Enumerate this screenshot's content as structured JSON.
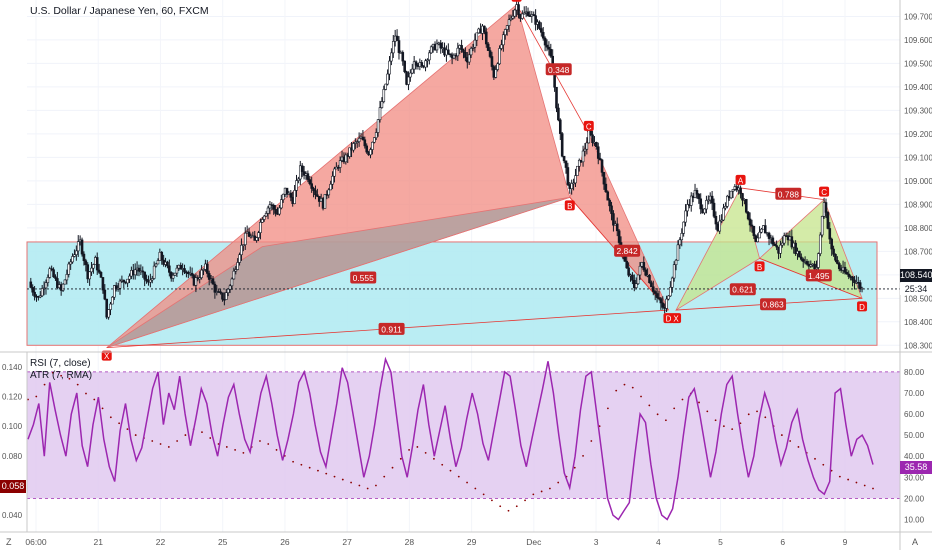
{
  "header": {
    "title": "U.S. Dollar / Japanese Yen, 60, FXCM"
  },
  "indicators": {
    "rsi_label": "RSI (7, close)",
    "atr_label": "ATR (7, RMA)"
  },
  "badges": {
    "last_price": "108.540",
    "countdown": "25:34",
    "rsi_value": "35.58",
    "atr_value": "0.058"
  },
  "corners": {
    "left": "Z",
    "right": "A"
  },
  "colors": {
    "up_candle": "#131722",
    "bull_pattern_fill": "#c6e48b",
    "bear_pattern_fill": "#f28b82",
    "grey_pattern_fill": "#a8a0a0",
    "zone_fill": "#b2ebf2",
    "label_red": "#e8140f",
    "ratio_label": "#c62828",
    "rsi_line": "#9c27b0",
    "rsi_band": "#e1c9f0",
    "atr_dots": "#8b0000"
  },
  "chart_data": [
    {
      "type": "candlestick",
      "title": "U.S. Dollar / Japanese Yen, 60, FXCM",
      "y_axis": {
        "side": "right",
        "ticks": [
          108.3,
          108.4,
          108.5,
          108.6,
          108.7,
          108.8,
          108.9,
          109.0,
          109.1,
          109.2,
          109.3,
          109.4,
          109.5,
          109.6,
          109.7
        ],
        "labels": [
          "108.300",
          "108.400",
          "108.500",
          "108.600",
          "108.700",
          "108.800",
          "108.900",
          "109.000",
          "109.100",
          "109.200",
          "109.300",
          "109.400",
          "109.500",
          "109.600",
          "109.700"
        ],
        "ylim": [
          108.28,
          109.77
        ]
      },
      "x_axis": {
        "labels": [
          "06:00",
          "21",
          "22",
          "25",
          "26",
          "27",
          "28",
          "29",
          "Dec",
          "3",
          "4",
          "5",
          "6",
          "9"
        ]
      },
      "last_price": 108.54,
      "support_zone": [
        108.3,
        108.74
      ],
      "price_path": [
        [
          0,
          108.57
        ],
        [
          3,
          108.5
        ],
        [
          6,
          108.62
        ],
        [
          9,
          108.53
        ],
        [
          12,
          108.68
        ],
        [
          14,
          108.74
        ],
        [
          16,
          108.6
        ],
        [
          18,
          108.66
        ],
        [
          20,
          108.55
        ],
        [
          21,
          108.42
        ],
        [
          23,
          108.55
        ],
        [
          26,
          108.58
        ],
        [
          29,
          108.63
        ],
        [
          32,
          108.56
        ],
        [
          35,
          108.68
        ],
        [
          38,
          108.6
        ],
        [
          41,
          108.64
        ],
        [
          44,
          108.57
        ],
        [
          47,
          108.63
        ],
        [
          50,
          108.52
        ],
        [
          52,
          108.5
        ],
        [
          54,
          108.58
        ],
        [
          56,
          108.7
        ],
        [
          58,
          108.78
        ],
        [
          60,
          108.74
        ],
        [
          62,
          108.85
        ],
        [
          64,
          108.9
        ],
        [
          66,
          108.86
        ],
        [
          68,
          108.96
        ],
        [
          70,
          108.92
        ],
        [
          72,
          109.05
        ],
        [
          74,
          109.02
        ],
        [
          76,
          108.95
        ],
        [
          78,
          108.9
        ],
        [
          80,
          109.0
        ],
        [
          82,
          109.07
        ],
        [
          84,
          109.1
        ],
        [
          86,
          109.15
        ],
        [
          88,
          109.18
        ],
        [
          90,
          109.12
        ],
        [
          92,
          109.22
        ],
        [
          93,
          109.3
        ],
        [
          95,
          109.45
        ],
        [
          96,
          109.55
        ],
        [
          97,
          109.62
        ],
        [
          99,
          109.5
        ],
        [
          100,
          109.4
        ],
        [
          102,
          109.52
        ],
        [
          104,
          109.48
        ],
        [
          106,
          109.55
        ],
        [
          108,
          109.58
        ],
        [
          110,
          109.55
        ],
        [
          112,
          109.52
        ],
        [
          114,
          109.57
        ],
        [
          116,
          109.52
        ],
        [
          118,
          109.6
        ],
        [
          120,
          109.66
        ],
        [
          122,
          109.52
        ],
        [
          123,
          109.45
        ],
        [
          125,
          109.58
        ],
        [
          127,
          109.68
        ],
        [
          129,
          109.75
        ],
        [
          130,
          109.7
        ],
        [
          132,
          109.72
        ],
        [
          134,
          109.68
        ],
        [
          136,
          109.62
        ],
        [
          138,
          109.52
        ],
        [
          139,
          109.4
        ],
        [
          140,
          109.25
        ],
        [
          141,
          109.12
        ],
        [
          142,
          109.05
        ],
        [
          143,
          108.95
        ],
        [
          145,
          109.05
        ],
        [
          147,
          109.14
        ],
        [
          148,
          109.2
        ],
        [
          150,
          109.15
        ],
        [
          152,
          109.0
        ],
        [
          154,
          108.85
        ],
        [
          156,
          108.75
        ],
        [
          158,
          108.62
        ],
        [
          160,
          108.55
        ],
        [
          162,
          108.65
        ],
        [
          164,
          108.58
        ],
        [
          166,
          108.5
        ],
        [
          168,
          108.45
        ],
        [
          170,
          108.6
        ],
        [
          172,
          108.75
        ],
        [
          174,
          108.9
        ],
        [
          176,
          108.95
        ],
        [
          178,
          108.88
        ],
        [
          180,
          108.92
        ],
        [
          182,
          108.8
        ],
        [
          184,
          108.9
        ],
        [
          186,
          108.98
        ],
        [
          188,
          108.96
        ],
        [
          190,
          108.85
        ],
        [
          192,
          108.73
        ],
        [
          194,
          108.8
        ],
        [
          196,
          108.75
        ],
        [
          198,
          108.7
        ],
        [
          200,
          108.78
        ],
        [
          202,
          108.72
        ],
        [
          204,
          108.67
        ],
        [
          206,
          108.65
        ],
        [
          208,
          108.62
        ],
        [
          210,
          108.92
        ],
        [
          212,
          108.7
        ],
        [
          214,
          108.63
        ],
        [
          216,
          108.6
        ],
        [
          218,
          108.58
        ],
        [
          220,
          108.54
        ]
      ],
      "patterns": [
        {
          "kind": "bearish",
          "points": [
            {
              "name": "X",
              "value": 108.29
            },
            {
              "name": "A",
              "value": 109.75
            },
            {
              "name": "B",
              "value": 108.93
            },
            {
              "name": "C",
              "value": 109.2
            },
            {
              "name": "D",
              "value": 108.45
            }
          ],
          "ratios": [
            "0.555",
            "0.348",
            "2.842",
            "0.911"
          ]
        },
        {
          "kind": "bullish",
          "points": [
            {
              "name": "X",
              "value": 108.45
            },
            {
              "name": "A",
              "value": 108.97
            },
            {
              "name": "B",
              "value": 108.67
            },
            {
              "name": "C",
              "value": 108.92
            },
            {
              "name": "D",
              "value": 108.5
            }
          ],
          "ratios": [
            "0.621",
            "0.788",
            "1.495",
            "0.863"
          ]
        }
      ]
    },
    {
      "type": "line",
      "title": "RSI (7, close)",
      "y_axis": {
        "side": "right",
        "ticks": [
          10,
          20,
          30,
          40,
          50,
          60,
          70,
          80
        ],
        "labels": [
          "10.00",
          "20.00",
          "30.00",
          "40.00",
          "50.00",
          "60.00",
          "70.00",
          "80.00"
        ],
        "ylim": [
          5,
          88
        ]
      },
      "band": [
        20,
        80
      ],
      "series": [
        {
          "values": [
            48,
            55,
            65,
            40,
            75,
            62,
            50,
            40,
            60,
            70,
            45,
            35,
            55,
            68,
            48,
            35,
            28,
            52,
            65,
            48,
            38,
            44,
            58,
            72,
            80,
            55,
            70,
            62,
            78,
            60,
            45,
            58,
            72,
            65,
            50,
            40,
            55,
            68,
            74,
            60,
            48,
            42,
            56,
            70,
            78,
            65,
            50,
            38,
            48,
            60,
            75,
            80,
            70,
            55,
            42,
            35,
            50,
            65,
            82,
            75,
            60,
            45,
            30,
            40,
            55,
            72,
            86,
            80,
            60,
            40,
            30,
            45,
            62,
            74,
            55,
            40,
            52,
            64,
            48,
            35,
            44,
            58,
            70,
            60,
            46,
            38,
            52,
            66,
            80,
            78,
            62,
            45,
            35,
            48,
            60,
            72,
            85,
            70,
            50,
            32,
            25,
            40,
            62,
            78,
            80,
            60,
            40,
            20,
            12,
            10,
            14,
            18,
            40,
            60,
            56,
            36,
            20,
            12,
            10,
            15,
            30,
            50,
            68,
            72,
            60,
            45,
            30,
            42,
            60,
            74,
            78,
            60,
            44,
            30,
            40,
            58,
            70,
            62,
            48,
            36,
            44,
            56,
            62,
            48,
            38,
            30,
            24,
            22,
            28,
            70,
            72,
            55,
            40,
            48,
            50,
            45,
            36
          ]
        }
      ]
    },
    {
      "type": "scatter",
      "title": "ATR (7, RMA)",
      "y_axis": {
        "side": "left",
        "ticks": [
          0.04,
          0.06,
          0.08,
          0.1,
          0.12,
          0.14
        ],
        "labels": [
          "0.040",
          "0.060",
          "0.080",
          "0.100",
          "0.120",
          "0.140"
        ],
        "ylim": [
          0.03,
          0.148
        ]
      },
      "series": [
        {
          "values": [
            0.118,
            0.12,
            0.128,
            0.136,
            0.134,
            0.132,
            0.128,
            0.122,
            0.118,
            0.112,
            0.106,
            0.102,
            0.098,
            0.094,
            0.092,
            0.09,
            0.088,
            0.086,
            0.09,
            0.094,
            0.098,
            0.096,
            0.092,
            0.088,
            0.086,
            0.084,
            0.082,
            0.086,
            0.09,
            0.088,
            0.084,
            0.08,
            0.076,
            0.074,
            0.072,
            0.07,
            0.068,
            0.066,
            0.064,
            0.062,
            0.06,
            0.058,
            0.06,
            0.066,
            0.072,
            0.078,
            0.084,
            0.086,
            0.082,
            0.078,
            0.074,
            0.07,
            0.066,
            0.062,
            0.058,
            0.054,
            0.05,
            0.046,
            0.043,
            0.046,
            0.05,
            0.054,
            0.056,
            0.058,
            0.062,
            0.066,
            0.072,
            0.08,
            0.09,
            0.1,
            0.112,
            0.124,
            0.128,
            0.126,
            0.12,
            0.114,
            0.108,
            0.104,
            0.112,
            0.118,
            0.122,
            0.116,
            0.11,
            0.104,
            0.1,
            0.098,
            0.102,
            0.108,
            0.11,
            0.106,
            0.1,
            0.094,
            0.09,
            0.086,
            0.082,
            0.078,
            0.074,
            0.07,
            0.066,
            0.064,
            0.062,
            0.06,
            0.058
          ]
        }
      ]
    }
  ]
}
